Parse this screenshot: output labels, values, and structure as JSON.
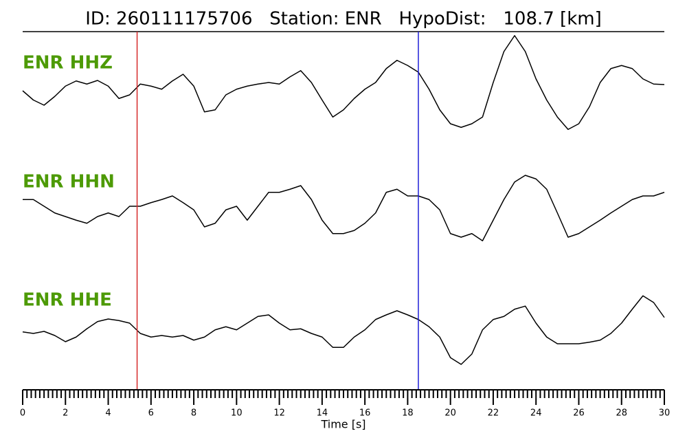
{
  "chart_data": {
    "type": "line",
    "title": "ID: 260111175706   Station: ENR   HypoDist:   108.7 [km]",
    "xlabel": "Time [s]",
    "xlim": [
      0,
      30
    ],
    "xticks": [
      0,
      2,
      4,
      6,
      8,
      10,
      12,
      14,
      16,
      18,
      20,
      22,
      24,
      26,
      28,
      30
    ],
    "xminorticks": [
      0.2,
      0.4,
      0.6,
      0.8,
      1,
      1.2,
      1.4,
      1.6,
      1.8,
      2.2,
      2.4,
      2.6,
      2.8,
      3,
      3.2,
      3.4,
      3.6,
      3.8,
      4.2,
      4.4,
      4.6,
      4.8,
      5,
      5.2,
      5.4,
      5.6,
      5.8,
      6.2,
      6.4,
      6.6,
      6.8,
      7,
      7.2,
      7.4,
      7.6,
      7.8,
      8.2,
      8.4,
      8.6,
      8.8,
      9,
      9.2,
      9.4,
      9.6,
      9.8,
      10.2,
      10.4,
      10.6,
      10.8,
      11,
      11.2,
      11.4,
      11.6,
      11.8,
      12.2,
      12.4,
      12.6,
      12.8,
      13,
      13.2,
      13.4,
      13.6,
      13.8,
      14.2,
      14.4,
      14.6,
      14.8,
      15,
      15.2,
      15.4,
      15.6,
      15.8,
      16.2,
      16.4,
      16.6,
      16.8,
      17,
      17.2,
      17.4,
      17.6,
      17.8,
      18.2,
      18.4,
      18.6,
      18.8,
      19,
      19.2,
      19.4,
      19.6,
      19.8,
      20.2,
      20.4,
      20.6,
      20.8,
      21,
      21.2,
      21.4,
      21.6,
      21.8,
      22.2,
      22.4,
      22.6,
      22.8,
      23,
      23.2,
      23.4,
      23.6,
      23.8,
      24.2,
      24.4,
      24.6,
      24.8,
      25,
      25.2,
      25.4,
      25.6,
      25.8,
      26.2,
      26.4,
      26.6,
      26.8,
      27,
      27.2,
      27.4,
      27.6,
      27.8,
      28.2,
      28.4,
      28.6,
      28.8,
      29,
      29.2,
      29.4,
      29.6,
      29.8
    ],
    "ylim": [
      -1,
      1
    ],
    "label_color": "#4d9a06",
    "markers": [
      {
        "x": 5.35,
        "color": "#d62728"
      },
      {
        "x": 18.5,
        "color": "#1f1fd6"
      }
    ],
    "x": [
      0,
      0.5,
      1,
      1.5,
      2,
      2.5,
      3,
      3.5,
      4,
      4.5,
      5,
      5.5,
      6,
      6.5,
      7,
      7.5,
      8,
      8.5,
      9,
      9.5,
      10,
      10.5,
      11,
      11.5,
      12,
      12.5,
      13,
      13.5,
      14,
      14.5,
      15,
      15.5,
      16,
      16.5,
      17,
      17.5,
      18,
      18.5,
      19,
      19.5,
      20,
      20.5,
      21,
      21.5,
      22,
      22.5,
      23,
      23.5,
      24,
      24.5,
      25,
      25.5,
      26,
      26.5,
      27,
      27.5,
      28,
      28.5,
      29,
      29.5,
      30
    ],
    "series": [
      {
        "name": "ENR HHZ",
        "color": "#000000",
        "values": [
          -0.12,
          -0.3,
          -0.4,
          -0.23,
          -0.03,
          0.07,
          0.01,
          0.08,
          -0.03,
          -0.27,
          -0.2,
          0.01,
          -0.03,
          -0.09,
          0.07,
          0.2,
          -0.03,
          -0.53,
          -0.49,
          -0.2,
          -0.09,
          -0.03,
          0.01,
          0.04,
          0.01,
          0.15,
          0.27,
          0.04,
          -0.3,
          -0.63,
          -0.49,
          -0.27,
          -0.09,
          0.04,
          0.31,
          0.47,
          0.37,
          0.24,
          -0.09,
          -0.49,
          -0.76,
          -0.83,
          -0.76,
          -0.63,
          0.04,
          0.64,
          0.95,
          0.64,
          0.11,
          -0.3,
          -0.63,
          -0.87,
          -0.76,
          -0.43,
          0.04,
          0.31,
          0.37,
          0.31,
          0.11,
          0.01,
          0
        ]
      },
      {
        "name": "ENR HHN",
        "color": "#000000",
        "values": [
          0.13,
          0.13,
          0,
          -0.13,
          -0.2,
          -0.27,
          -0.33,
          -0.2,
          -0.13,
          -0.2,
          0,
          0,
          0.07,
          0.13,
          0.2,
          0.07,
          -0.07,
          -0.4,
          -0.33,
          -0.07,
          0,
          -0.27,
          0,
          0.27,
          0.27,
          0.33,
          0.4,
          0.13,
          -0.27,
          -0.53,
          -0.53,
          -0.47,
          -0.33,
          -0.13,
          0.27,
          0.33,
          0.2,
          0.2,
          0.13,
          -0.07,
          -0.53,
          -0.6,
          -0.53,
          -0.67,
          -0.27,
          0.13,
          0.47,
          0.6,
          0.53,
          0.33,
          -0.13,
          -0.6,
          -0.53,
          -0.4,
          -0.27,
          -0.13,
          0,
          0.13,
          0.2,
          0.2,
          0.27
        ]
      },
      {
        "name": "ENR HHE",
        "color": "#000000",
        "values": [
          -0.17,
          -0.2,
          -0.16,
          -0.24,
          -0.36,
          -0.27,
          -0.11,
          0.03,
          0.08,
          0.05,
          0,
          -0.2,
          -0.27,
          -0.24,
          -0.27,
          -0.24,
          -0.33,
          -0.27,
          -0.13,
          -0.07,
          -0.13,
          0,
          0.13,
          0.16,
          0,
          -0.13,
          -0.11,
          -0.2,
          -0.27,
          -0.47,
          -0.47,
          -0.27,
          -0.13,
          0.07,
          0.16,
          0.24,
          0.16,
          0.07,
          -0.07,
          -0.27,
          -0.67,
          -0.8,
          -0.6,
          -0.13,
          0.07,
          0.13,
          0.27,
          0.33,
          0,
          -0.27,
          -0.4,
          -0.4,
          -0.4,
          -0.37,
          -0.33,
          -0.2,
          0,
          0.27,
          0.53,
          0.4,
          0.11
        ]
      }
    ]
  }
}
